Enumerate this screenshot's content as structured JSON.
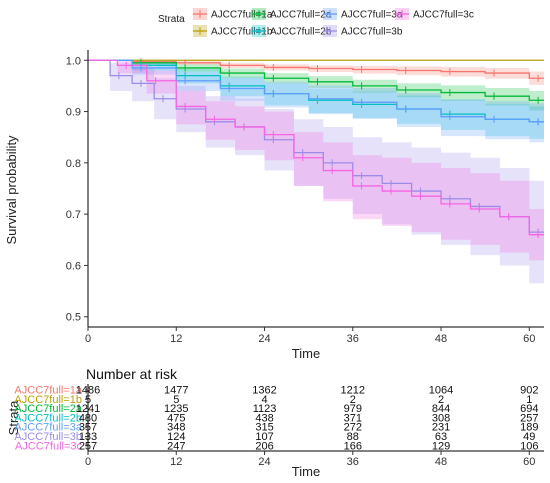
{
  "chart_data": {
    "type": "line",
    "subtype": "kaplan-meier survival curve with confidence bands",
    "xlabel": "Time",
    "ylabel": "Survival probability",
    "xlim": [
      0,
      62
    ],
    "ylim": [
      0.48,
      1.02
    ],
    "x_ticks": [
      0,
      12,
      24,
      36,
      48,
      60
    ],
    "y_ticks": [
      0.5,
      0.6,
      0.7,
      0.8,
      0.9,
      1.0
    ],
    "y_tick_labels": [
      "0.5",
      "0.6",
      "0.7",
      "0.8",
      "0.9",
      "1.0"
    ],
    "legend_title": "Strata",
    "legend_position": "top",
    "grid": false,
    "series": [
      {
        "name": "AJCC7full=1a",
        "color": "#F8766D",
        "x": [
          0,
          6,
          12,
          18,
          24,
          30,
          36,
          42,
          48,
          54,
          60,
          62
        ],
        "y": [
          1.0,
          0.997,
          0.995,
          0.99,
          0.986,
          0.984,
          0.982,
          0.98,
          0.978,
          0.975,
          0.965,
          0.965
        ],
        "lower": [
          1.0,
          0.994,
          0.991,
          0.985,
          0.98,
          0.977,
          0.974,
          0.971,
          0.968,
          0.964,
          0.952,
          0.952
        ],
        "upper": [
          1.0,
          1.0,
          0.998,
          0.995,
          0.992,
          0.99,
          0.989,
          0.988,
          0.987,
          0.985,
          0.978,
          0.978
        ]
      },
      {
        "name": "AJCC7full=1b",
        "color": "#B79F00",
        "x": [
          0,
          62
        ],
        "y": [
          1.0,
          1.0
        ],
        "lower": [
          1.0,
          1.0
        ],
        "upper": [
          1.0,
          1.0
        ]
      },
      {
        "name": "AJCC7full=2a",
        "color": "#00BA38",
        "x": [
          0,
          6,
          12,
          18,
          24,
          30,
          36,
          42,
          48,
          54,
          60,
          62
        ],
        "y": [
          1.0,
          0.995,
          0.985,
          0.975,
          0.965,
          0.958,
          0.95,
          0.942,
          0.937,
          0.93,
          0.922,
          0.922
        ],
        "lower": [
          1.0,
          0.99,
          0.978,
          0.966,
          0.955,
          0.946,
          0.937,
          0.928,
          0.921,
          0.912,
          0.902,
          0.902
        ],
        "upper": [
          1.0,
          0.999,
          0.992,
          0.984,
          0.975,
          0.969,
          0.962,
          0.955,
          0.951,
          0.946,
          0.94,
          0.94
        ]
      },
      {
        "name": "AJCC7full=2b",
        "color": "#00BFC4",
        "x": [
          0,
          6,
          12,
          18,
          24,
          30,
          36,
          42,
          48,
          54,
          60,
          62
        ],
        "y": [
          1.0,
          0.99,
          0.97,
          0.95,
          0.935,
          0.922,
          0.914,
          0.905,
          0.895,
          0.885,
          0.88,
          0.88
        ],
        "lower": [
          1.0,
          0.98,
          0.955,
          0.93,
          0.912,
          0.897,
          0.887,
          0.876,
          0.864,
          0.852,
          0.847,
          0.847
        ],
        "upper": [
          1.0,
          0.998,
          0.983,
          0.968,
          0.955,
          0.945,
          0.939,
          0.931,
          0.923,
          0.915,
          0.91,
          0.91
        ]
      },
      {
        "name": "AJCC7full=3a",
        "color": "#619CFF",
        "x": [
          0,
          6,
          12,
          18,
          24,
          30,
          36,
          42,
          48,
          54,
          60,
          62
        ],
        "y": [
          1.0,
          0.985,
          0.96,
          0.945,
          0.935,
          0.925,
          0.918,
          0.905,
          0.89,
          0.885,
          0.88,
          0.88
        ],
        "lower": [
          1.0,
          0.972,
          0.94,
          0.921,
          0.908,
          0.895,
          0.886,
          0.87,
          0.852,
          0.846,
          0.84,
          0.84
        ],
        "upper": [
          1.0,
          0.996,
          0.978,
          0.966,
          0.958,
          0.951,
          0.946,
          0.936,
          0.924,
          0.92,
          0.916,
          0.916
        ]
      },
      {
        "name": "AJCC7full=3b",
        "color": "#9C8CE8",
        "x": [
          0,
          3,
          6,
          9,
          12,
          16,
          20,
          24,
          28,
          32,
          36,
          40,
          44,
          48,
          52,
          56,
          60,
          62
        ],
        "y": [
          1.0,
          0.97,
          0.955,
          0.925,
          0.905,
          0.88,
          0.87,
          0.845,
          0.82,
          0.8,
          0.775,
          0.76,
          0.745,
          0.73,
          0.715,
          0.695,
          0.665,
          0.665
        ],
        "lower": [
          1.0,
          0.94,
          0.92,
          0.885,
          0.86,
          0.83,
          0.815,
          0.785,
          0.755,
          0.73,
          0.7,
          0.68,
          0.66,
          0.64,
          0.62,
          0.6,
          0.565,
          0.565
        ],
        "upper": [
          1.0,
          0.995,
          0.985,
          0.965,
          0.95,
          0.93,
          0.925,
          0.905,
          0.885,
          0.87,
          0.85,
          0.84,
          0.83,
          0.82,
          0.81,
          0.79,
          0.765,
          0.765
        ]
      },
      {
        "name": "AJCC7full=3c",
        "color": "#F564E3",
        "x": [
          0,
          4,
          8,
          12,
          16,
          20,
          24,
          28,
          32,
          36,
          40,
          44,
          48,
          52,
          56,
          60,
          62
        ],
        "y": [
          1.0,
          0.99,
          0.96,
          0.91,
          0.885,
          0.87,
          0.855,
          0.81,
          0.785,
          0.755,
          0.745,
          0.735,
          0.72,
          0.71,
          0.695,
          0.66,
          0.66
        ],
        "lower": [
          1.0,
          0.975,
          0.935,
          0.875,
          0.845,
          0.825,
          0.805,
          0.755,
          0.725,
          0.69,
          0.677,
          0.665,
          0.65,
          0.64,
          0.625,
          0.61,
          0.61
        ],
        "upper": [
          1.0,
          1.0,
          0.98,
          0.94,
          0.92,
          0.91,
          0.9,
          0.86,
          0.84,
          0.815,
          0.81,
          0.8,
          0.79,
          0.78,
          0.765,
          0.71,
          0.71
        ]
      }
    ],
    "risk_table": {
      "title": "Number at risk",
      "ylabel": "Strata",
      "xlabel": "Time",
      "times": [
        0,
        12,
        24,
        36,
        48,
        60
      ],
      "rows": [
        {
          "label": "AJCC7full=1a",
          "counts": [
            "1486",
            "1477",
            "1362",
            "1212",
            "1064",
            "902"
          ]
        },
        {
          "label": "AJCC7full=1b",
          "counts": [
            "5",
            "5",
            "4",
            "2",
            "2",
            "1"
          ]
        },
        {
          "label": "AJCC7full=2a",
          "counts": [
            "1241",
            "1235",
            "1123",
            "979",
            "844",
            "694"
          ]
        },
        {
          "label": "AJCC7full=2b",
          "counts": [
            "480",
            "475",
            "438",
            "371",
            "308",
            "257"
          ]
        },
        {
          "label": "AJCC7full=3a",
          "counts": [
            "357",
            "348",
            "315",
            "272",
            "231",
            "189"
          ]
        },
        {
          "label": "AJCC7full=3b",
          "counts": [
            "133",
            "124",
            "107",
            "88",
            "63",
            "49"
          ]
        },
        {
          "label": "AJCC7full=3c",
          "counts": [
            "257",
            "247",
            "206",
            "166",
            "129",
            "106"
          ]
        }
      ]
    }
  }
}
